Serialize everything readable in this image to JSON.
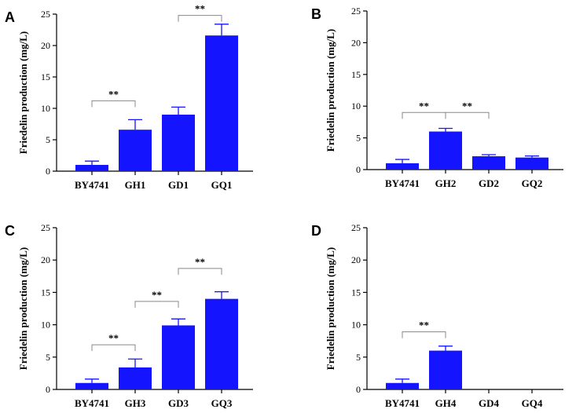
{
  "chart_data": [
    {
      "panel": "A",
      "type": "bar",
      "categories": [
        "BY4741",
        "GH1",
        "GD1",
        "GQ1"
      ],
      "values": [
        1.0,
        6.6,
        9.0,
        21.6
      ],
      "errors": [
        0.6,
        1.6,
        1.2,
        1.8
      ],
      "ylabel": "Friedelin production (mg/L)",
      "ylim": [
        0,
        25
      ],
      "yticks": [
        "0",
        "5",
        "10",
        "15",
        "20",
        "25"
      ],
      "bar_color": "#1414ff",
      "significance": [
        {
          "from": 0,
          "to": 1,
          "label": "**",
          "y": 11.2
        },
        {
          "from": 2,
          "to": 3,
          "label": "**",
          "y": 24.8
        }
      ]
    },
    {
      "panel": "B",
      "type": "bar",
      "categories": [
        "BY4741",
        "GH2",
        "GD2",
        "GQ2"
      ],
      "values": [
        1.0,
        6.0,
        2.1,
        1.9
      ],
      "errors": [
        0.6,
        0.5,
        0.25,
        0.25
      ],
      "ylabel": "Friedelin production (mg/L)",
      "ylim": [
        0,
        25
      ],
      "yticks": [
        "0",
        "5",
        "10",
        "15",
        "20",
        "25"
      ],
      "bar_color": "#1414ff",
      "significance": [
        {
          "from": 0,
          "to": 1,
          "label": "**",
          "y": 9.0
        },
        {
          "from": 1,
          "to": 2,
          "label": "**",
          "y": 9.0
        }
      ]
    },
    {
      "panel": "C",
      "type": "bar",
      "categories": [
        "BY4741",
        "GH3",
        "GD3",
        "GQ3"
      ],
      "values": [
        1.0,
        3.4,
        9.9,
        14.0
      ],
      "errors": [
        0.6,
        1.3,
        1.0,
        1.1
      ],
      "ylabel": "Friedelin production (mg/L)",
      "ylim": [
        0,
        25
      ],
      "yticks": [
        "0",
        "5",
        "10",
        "15",
        "20",
        "25"
      ],
      "bar_color": "#1414ff",
      "significance": [
        {
          "from": 0,
          "to": 1,
          "label": "**",
          "y": 6.9
        },
        {
          "from": 1,
          "to": 2,
          "label": "**",
          "y": 13.6
        },
        {
          "from": 2,
          "to": 3,
          "label": "**",
          "y": 18.7
        }
      ]
    },
    {
      "panel": "D",
      "type": "bar",
      "categories": [
        "BY4741",
        "GH4",
        "GD4",
        "GQ4"
      ],
      "values": [
        1.0,
        6.0,
        0,
        0
      ],
      "errors": [
        0.6,
        0.7,
        0,
        0
      ],
      "ylabel": "Friedelin production (mg/L)",
      "ylim": [
        0,
        25
      ],
      "yticks": [
        "0",
        "5",
        "10",
        "15",
        "20",
        "25"
      ],
      "bar_color": "#1414ff",
      "significance": [
        {
          "from": 0,
          "to": 1,
          "label": "**",
          "y": 8.9
        }
      ]
    }
  ]
}
